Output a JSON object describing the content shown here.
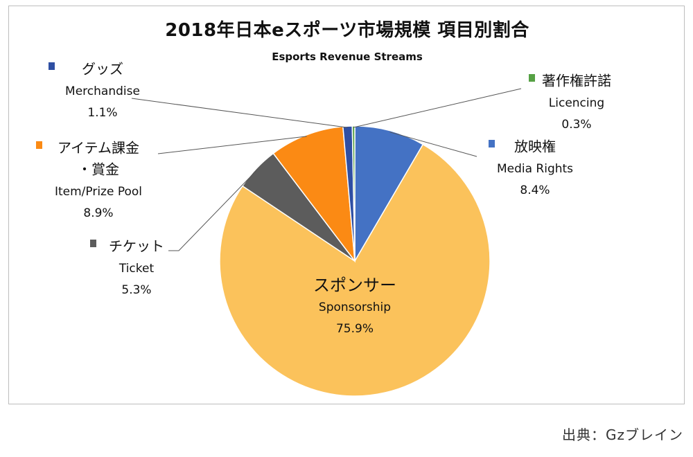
{
  "chart_data": {
    "type": "pie",
    "title": "2018年日本eスポーツ市場規模 項目別割合",
    "subtitle": "Esports Revenue Streams",
    "slices": [
      {
        "jp_label": "放映権",
        "en_label": "Media Rights",
        "value": 8.4,
        "percent_label": "8.4%",
        "color": "#4472c4"
      },
      {
        "jp_label": "スポンサー",
        "en_label": "Sponsorship",
        "value": 75.9,
        "percent_label": "75.9%",
        "color": "#fbc25b"
      },
      {
        "jp_label": "チケット",
        "en_label": "Ticket",
        "value": 5.3,
        "percent_label": "5.3%",
        "color": "#5c5c5c"
      },
      {
        "jp_label": "アイテム課金",
        "jp_label_line2": "・賞金",
        "en_label": "Item/Prize Pool",
        "value": 8.9,
        "percent_label": "8.9%",
        "color": "#fb8a14"
      },
      {
        "jp_label": "グッズ",
        "en_label": "Merchandise",
        "value": 1.1,
        "percent_label": "1.1%",
        "color": "#2f4fa3"
      },
      {
        "jp_label": "著作権許諾",
        "en_label": "Licencing",
        "value": 0.3,
        "percent_label": "0.3%",
        "color": "#56a144"
      }
    ]
  },
  "source": "出典：Gzブレイン"
}
